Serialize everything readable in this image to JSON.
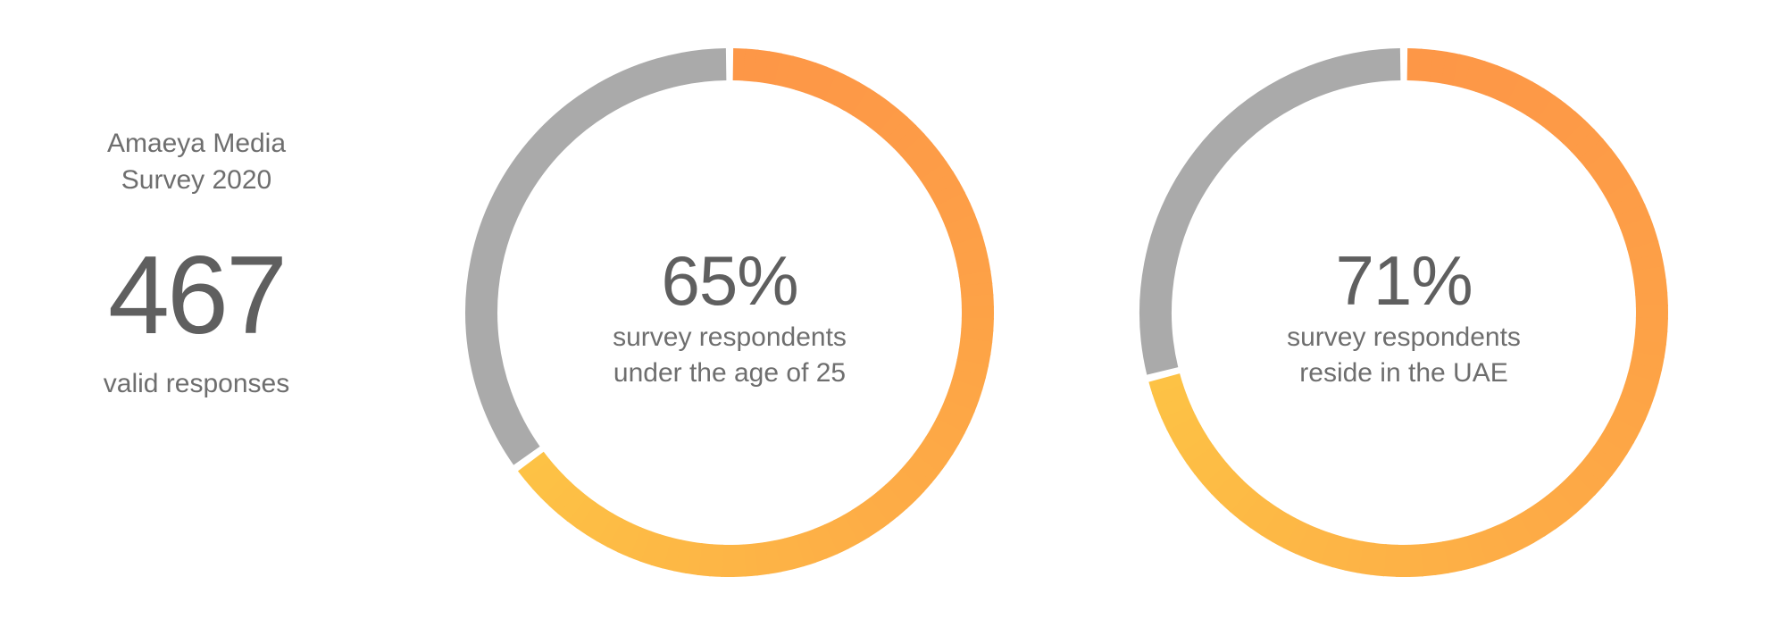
{
  "summary": {
    "title_line1": "Amaeya Media",
    "title_line2": "Survey 2020",
    "count": "467",
    "count_label": "valid responses"
  },
  "colors": {
    "orange": "#FD9747",
    "yellow": "#FDC245",
    "gray": "#AAAAAA",
    "text": "#5F5F5F"
  },
  "chart_data": [
    {
      "type": "pie",
      "style": "donut",
      "value_label": "65%",
      "caption_line1": "survey respondents",
      "caption_line2": "under the age of 25",
      "slices": [
        {
          "value": 65,
          "color": "gradient-orange-to-yellow"
        },
        {
          "value": 35,
          "color": "#AAAAAA"
        }
      ]
    },
    {
      "type": "pie",
      "style": "donut",
      "value_label": "71%",
      "caption_line1": "survey respondents",
      "caption_line2": "reside in the UAE",
      "slices": [
        {
          "value": 71,
          "color": "gradient-orange-to-yellow"
        },
        {
          "value": 29,
          "color": "#AAAAAA"
        }
      ]
    }
  ]
}
